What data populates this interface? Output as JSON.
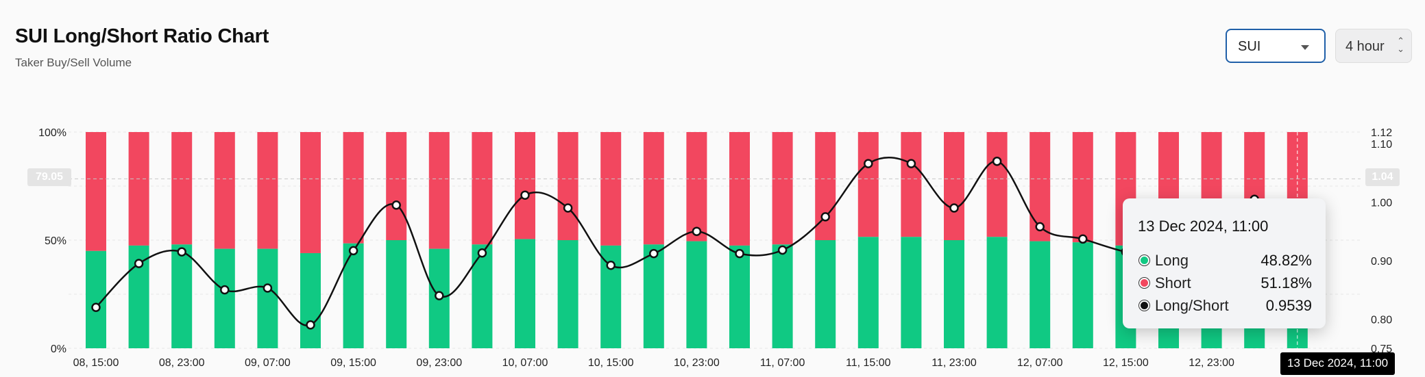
{
  "header": {
    "title": "SUI Long/Short Ratio Chart",
    "subtitle": "Taker Buy/Sell Volume"
  },
  "controls": {
    "symbol_value": "SUI",
    "interval_value": "4 hour"
  },
  "colors": {
    "long": "#10c983",
    "short": "#f2475f",
    "line": "#111111"
  },
  "crosshair": {
    "x_label": "13 Dec 2024, 11:00",
    "y_left_label": "79.05",
    "y_right_label": "1.04"
  },
  "tooltip": {
    "title": "13 Dec 2024, 11:00",
    "rows": [
      {
        "label": "Long",
        "value": "48.82%"
      },
      {
        "label": "Short",
        "value": "51.18%"
      },
      {
        "label": "Long/Short",
        "value": "0.9539"
      }
    ]
  },
  "chart_data": {
    "type": "bar",
    "stacked": true,
    "x_tick_labels": [
      "08, 15:00",
      "08, 23:00",
      "09, 07:00",
      "09, 15:00",
      "09, 23:00",
      "10, 07:00",
      "10, 15:00",
      "10, 23:00",
      "11, 07:00",
      "11, 15:00",
      "11, 23:00",
      "12, 07:00",
      "12, 15:00",
      "12, 23:00",
      "13"
    ],
    "y_left_ticks": [
      "0%",
      "50%",
      "100%"
    ],
    "y_right_ticks": [
      "0.75",
      "0.80",
      "0.90",
      "1.00",
      "1.10",
      "1.12"
    ],
    "y_left_range": [
      0,
      100
    ],
    "y_right_range": [
      0.75,
      1.12
    ],
    "series": [
      {
        "name": "Long",
        "axis": "left",
        "values": [
          45,
          47.5,
          48,
          46,
          46,
          44,
          48.5,
          50,
          46,
          48,
          50.5,
          50,
          47.5,
          48,
          49.5,
          47.5,
          48,
          50,
          51.5,
          51.5,
          50,
          51.5,
          49.5,
          49,
          47.5,
          48,
          48.5,
          49,
          48.82
        ]
      },
      {
        "name": "Short",
        "axis": "left",
        "values": [
          55,
          52.5,
          52,
          54,
          54,
          56,
          51.5,
          50,
          54,
          52,
          49.5,
          50,
          52.5,
          52,
          50.5,
          52.5,
          52,
          50,
          48.5,
          48.5,
          50,
          48.5,
          50.5,
          51,
          52.5,
          52,
          51.5,
          51,
          51.18
        ]
      },
      {
        "name": "Long/Short",
        "axis": "right",
        "values": [
          0.82,
          0.895,
          0.915,
          0.85,
          0.853,
          0.79,
          0.917,
          0.995,
          0.84,
          0.913,
          1.012,
          0.99,
          0.892,
          0.912,
          0.95,
          0.912,
          0.918,
          0.975,
          1.066,
          1.066,
          0.99,
          1.07,
          0.958,
          0.937,
          0.915,
          0.905,
          0.945,
          1.005,
          0.9539
        ]
      }
    ]
  }
}
